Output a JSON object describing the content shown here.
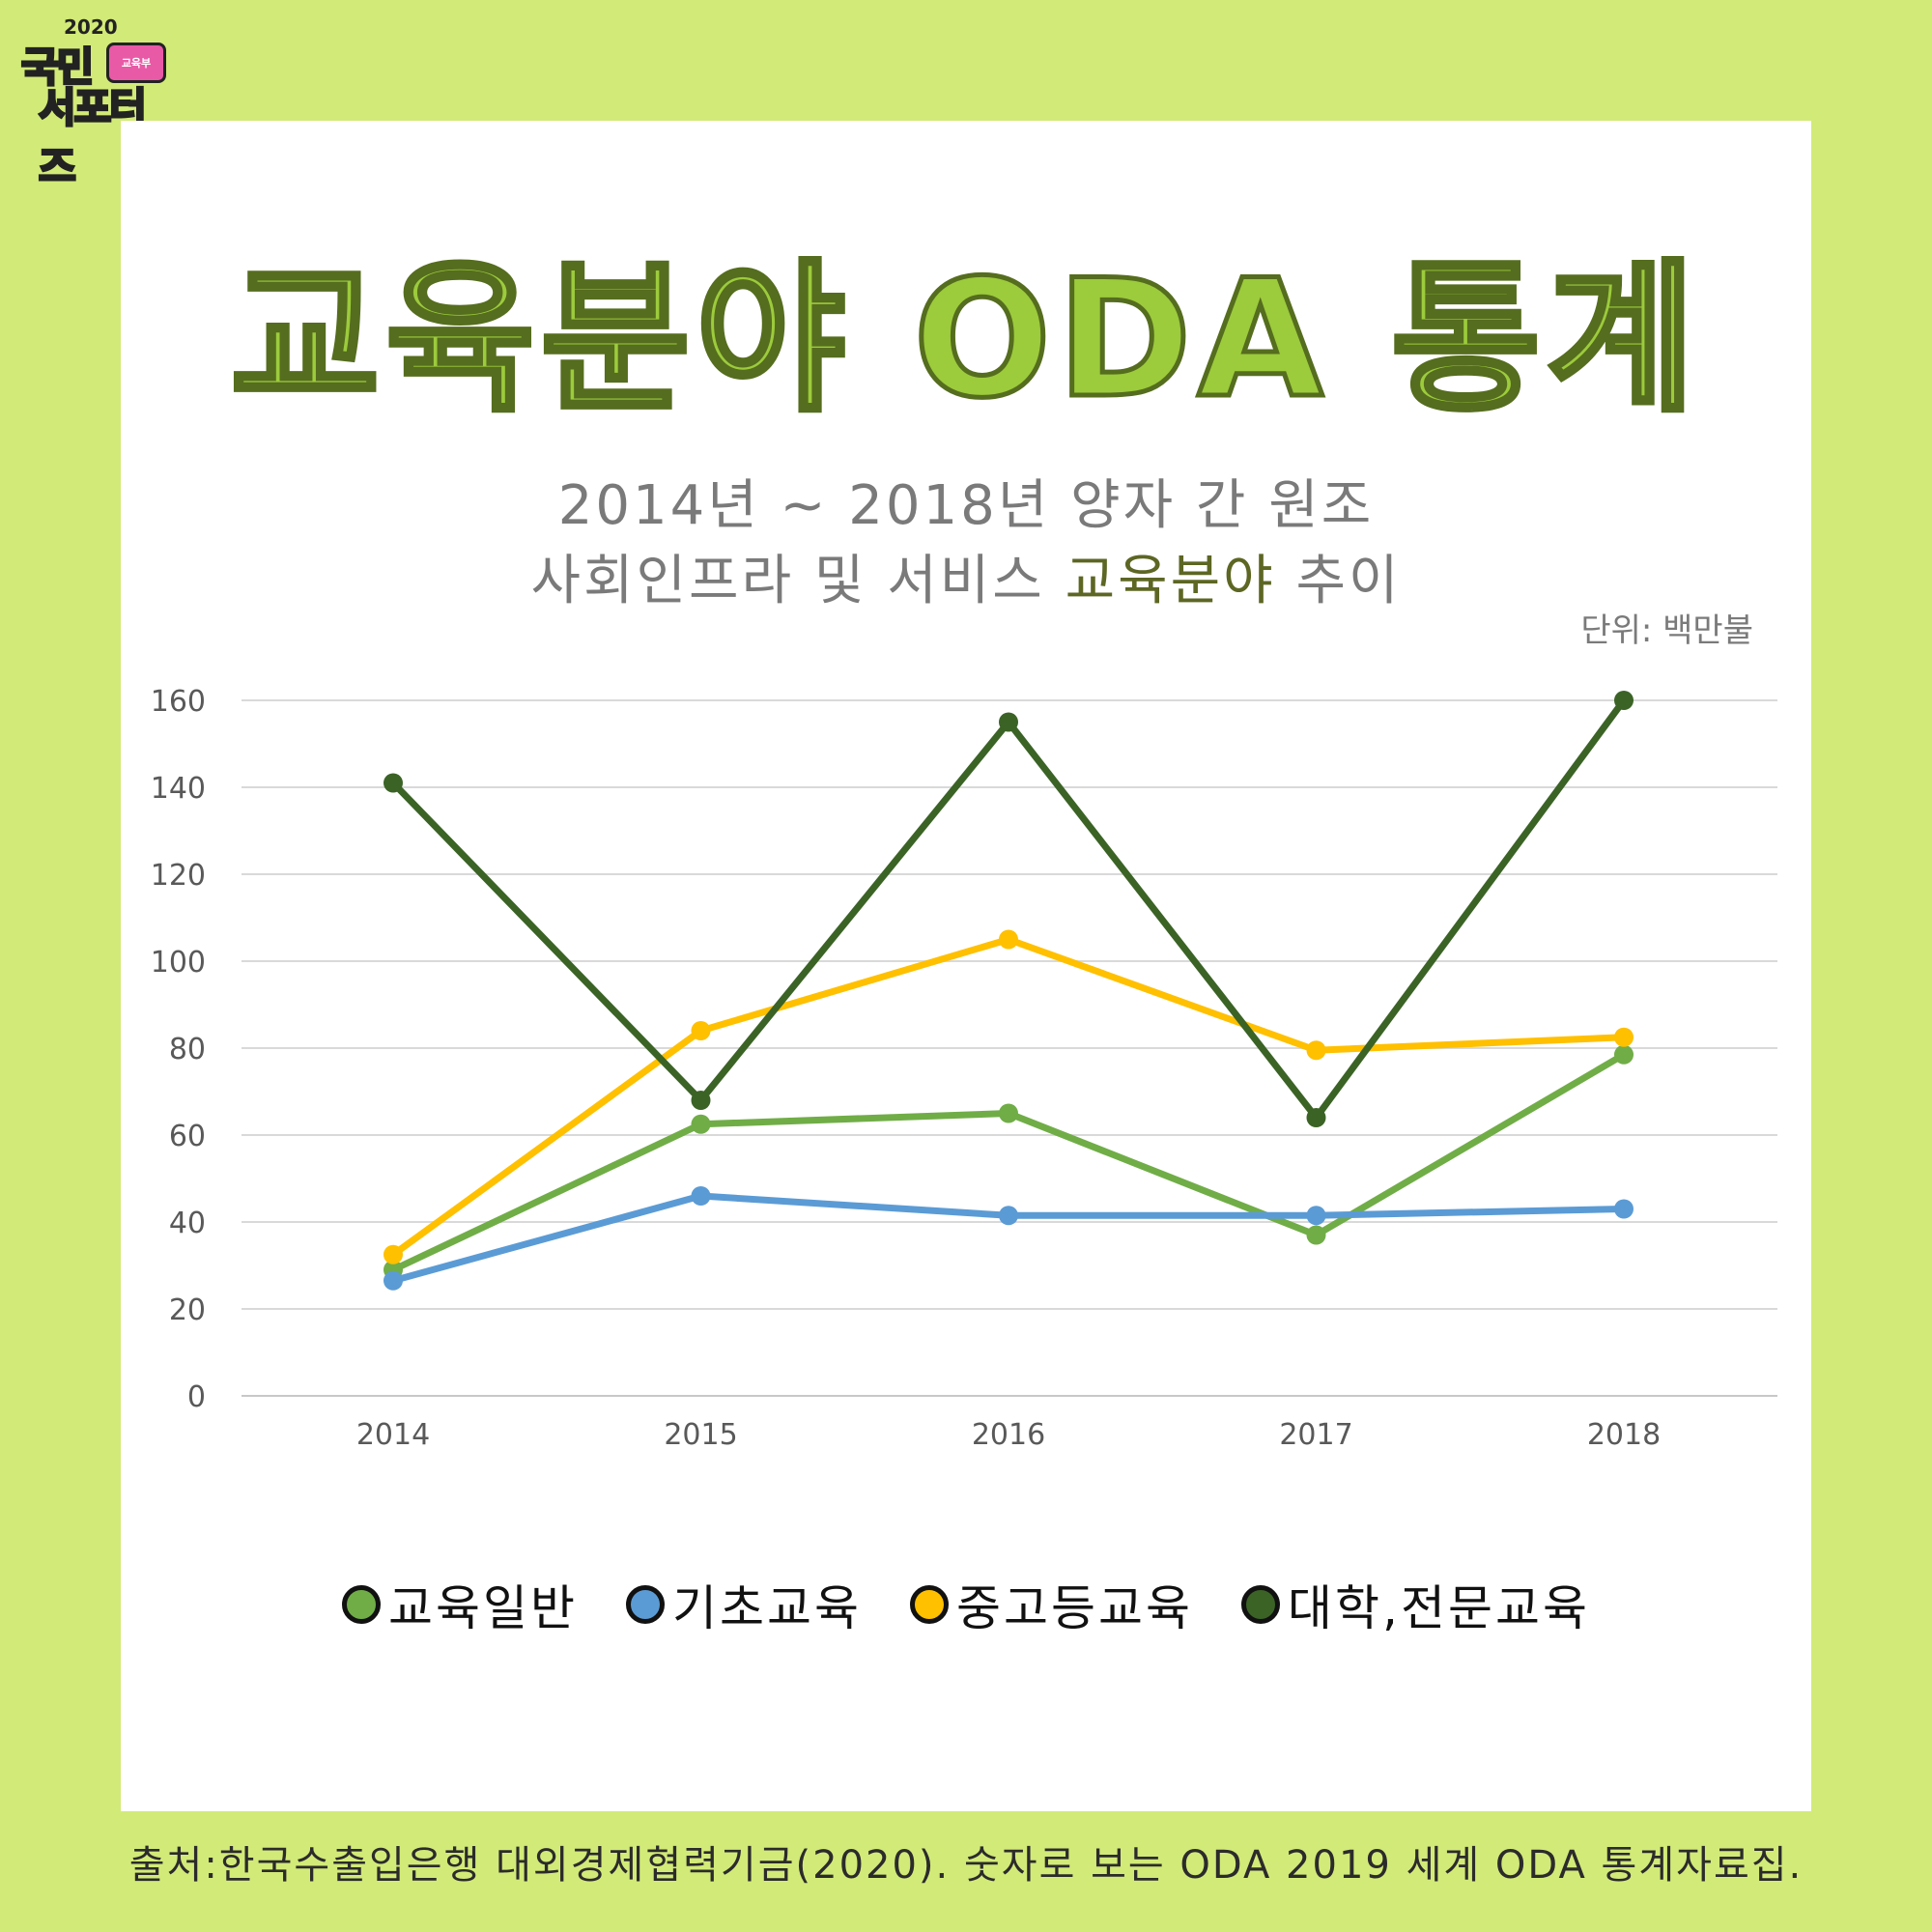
{
  "logo": {
    "year": "2020",
    "line1": "국민",
    "line2": "서포터즈",
    "badge": "교육부"
  },
  "title": "교육분야 ODA 통계",
  "subtitle": {
    "line1": "2014년 ~ 2018년 양자 간 원조",
    "line2_prefix": "사회인프라 및 서비스 ",
    "line2_highlight": "교육분야",
    "line2_suffix": " 추이"
  },
  "unit": "단위: 백만불",
  "source": "출처:한국수출입은행 대외경제협력기금(2020). 숫자로 보는 ODA 2019 세계 ODA 통계자료집.",
  "colors": {
    "background": "#d2ea78",
    "title_fill": "#9ccb3c",
    "title_stroke": "#556d1e",
    "highlight": "#5d6623"
  },
  "chart_data": {
    "type": "line",
    "title": "",
    "xlabel": "",
    "ylabel": "",
    "ylim": [
      0,
      160
    ],
    "yticks": [
      0,
      20,
      40,
      60,
      80,
      100,
      120,
      140,
      160
    ],
    "grid": true,
    "legend_position": "bottom",
    "categories": [
      "2014",
      "2015",
      "2016",
      "2017",
      "2018"
    ],
    "series": [
      {
        "name": "교육일반",
        "color": "#70ad47",
        "values": [
          29,
          62.5,
          65,
          37,
          78.5
        ]
      },
      {
        "name": "기초교육",
        "color": "#5b9bd5",
        "values": [
          26.5,
          46,
          41.5,
          41.5,
          43
        ]
      },
      {
        "name": "중고등교육",
        "color": "#ffc000",
        "values": [
          32.5,
          84,
          105,
          79.5,
          82.5
        ]
      },
      {
        "name": "대학,전문교육",
        "color": "#3b6326",
        "values": [
          141,
          68,
          155,
          64,
          160
        ]
      }
    ]
  }
}
